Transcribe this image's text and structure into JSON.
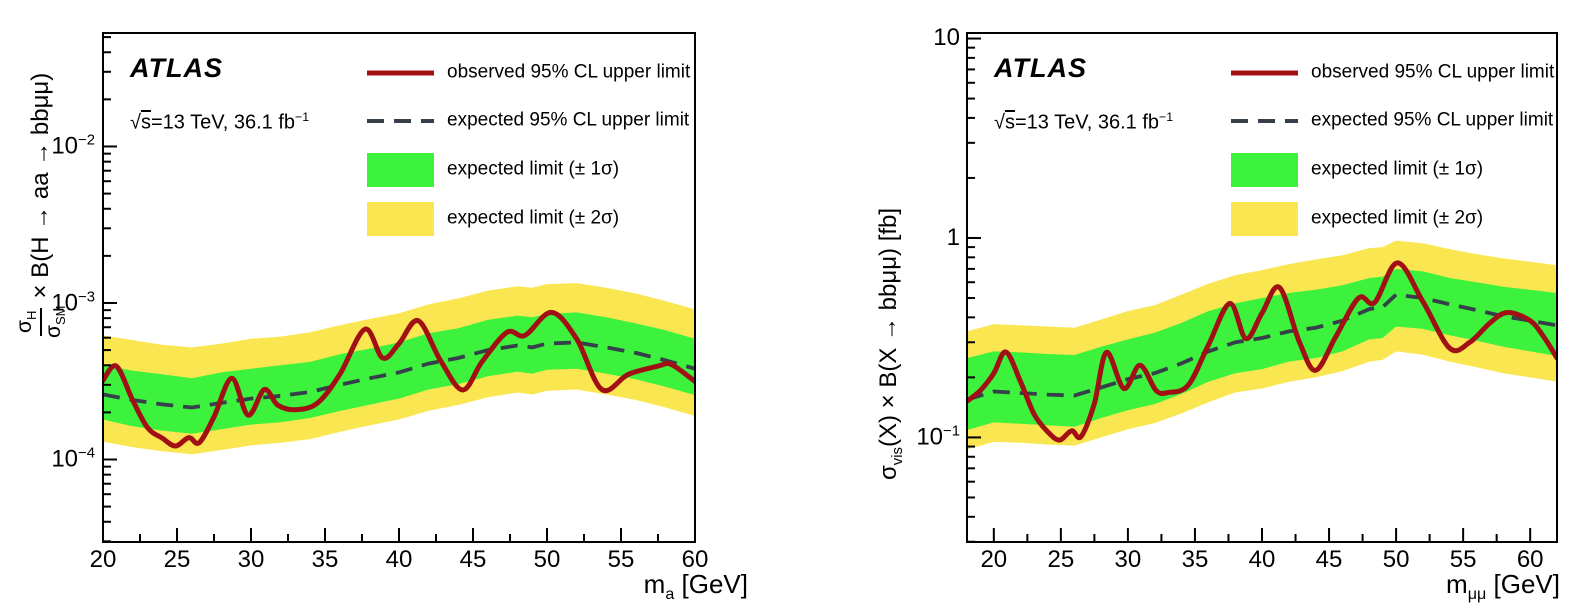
{
  "figure": {
    "atlas_label": "ATLAS",
    "lumi_label": "√s=13 TeV, 36.1 fb-1",
    "lumi_label_html": "√<span class=\"ol\">s</span>=13 TeV, 36.1 fb<sup>−1</sup>",
    "colors": {
      "observed": "#a01015",
      "expected": "#36404a",
      "band_1sigma": "#3df23d",
      "band_2sigma": "#fae650",
      "frame": "#000000",
      "text": "#000000",
      "background": "#ffffff"
    },
    "legend": {
      "position": "top-right",
      "items": [
        {
          "label": "observed 95% CL upper limit",
          "marker": "solid-line",
          "color": "#a01015"
        },
        {
          "label": "expected 95% CL upper limit",
          "marker": "dashed-line",
          "color": "#36404a"
        },
        {
          "label": "expected limit (± 1σ)",
          "marker": "filled-box",
          "color": "#3df23d"
        },
        {
          "label": "expected limit (± 2σ)",
          "marker": "filled-box",
          "color": "#fae650"
        }
      ]
    }
  },
  "chart_data": [
    {
      "type": "line",
      "title": "",
      "x_scale": "linear",
      "y_scale": "log",
      "grid": false,
      "xlabel": "m_a [GeV]",
      "xlabel_html": "m<sub>a</sub> [GeV]",
      "ylabel": "σ_H/σ_SM × B(H → aa → bbμμ)",
      "ylabel_parts": {
        "numerator_html": "σ<sub>H</sub>",
        "denominator_html": "σ<sub>SM</sub>",
        "suffix_html": "× B(H → aa → bbμμ)"
      },
      "x_range": [
        20,
        60
      ],
      "y_range": [
        2.97e-05,
        0.0531
      ],
      "x_ticks_major": [
        20,
        25,
        30,
        35,
        40,
        45,
        50,
        55,
        60
      ],
      "x_minor_step": 2.5,
      "y_ticks": [
        {
          "value": 0.01,
          "html": "10<sup>−2</sup>"
        },
        {
          "value": 0.001,
          "html": "10<sup>−3</sup>"
        },
        {
          "value": 0.0001,
          "html": "10<sup>−4</sup>"
        }
      ],
      "series": {
        "observed": {
          "name": "observed 95% CL upper limit",
          "points": [
            [
              20,
              0.00032
            ],
            [
              20.9,
              0.000395
            ],
            [
              22,
              0.00024
            ],
            [
              23,
              0.00016
            ],
            [
              24,
              0.000137
            ],
            [
              24.9,
              0.000122
            ],
            [
              25.8,
              0.000138
            ],
            [
              26.5,
              0.000128
            ],
            [
              27.5,
              0.000187
            ],
            [
              28.7,
              0.00033
            ],
            [
              29.8,
              0.000192
            ],
            [
              30.9,
              0.00028
            ],
            [
              31.8,
              0.000223
            ],
            [
              33,
              0.000208
            ],
            [
              34.5,
              0.00023
            ],
            [
              36,
              0.00035
            ],
            [
              37.7,
              0.00068
            ],
            [
              38.9,
              0.000445
            ],
            [
              40,
              0.00055
            ],
            [
              41.3,
              0.00077
            ],
            [
              42.8,
              0.00043
            ],
            [
              44.3,
              0.000278
            ],
            [
              45.6,
              0.00042
            ],
            [
              47.3,
              0.00065
            ],
            [
              48.5,
              0.00062
            ],
            [
              50.3,
              0.00087
            ],
            [
              52,
              0.00059
            ],
            [
              53.7,
              0.00028
            ],
            [
              55.5,
              0.00035
            ],
            [
              57.5,
              0.000395
            ],
            [
              58.4,
              0.000405
            ],
            [
              60,
              0.000315
            ]
          ]
        },
        "expected": {
          "name": "expected 95% CL upper limit",
          "x": [
            20,
            22,
            24,
            26,
            28,
            30,
            32,
            34,
            36,
            38,
            40,
            42,
            44,
            46,
            48,
            49,
            50,
            52,
            54,
            56,
            58,
            60
          ],
          "y": [
            0.00026,
            0.00024,
            0.000225,
            0.000215,
            0.00023,
            0.000245,
            0.000255,
            0.00027,
            0.0003,
            0.00033,
            0.00036,
            0.00041,
            0.000445,
            0.0005,
            0.000535,
            0.00052,
            0.00055,
            0.00056,
            0.00052,
            0.00048,
            0.00043,
            0.00038
          ]
        },
        "band_1sigma": {
          "name": "expected limit (± 1σ)",
          "x": [
            20,
            22,
            24,
            26,
            28,
            30,
            32,
            34,
            36,
            38,
            40,
            42,
            44,
            46,
            48,
            49,
            50,
            52,
            54,
            56,
            58,
            60
          ],
          "up": [
            0.0004,
            0.00037,
            0.00035,
            0.00033,
            0.00036,
            0.00038,
            0.0004,
            0.00042,
            0.00047,
            0.00051,
            0.00056,
            0.00064,
            0.00069,
            0.00078,
            0.00083,
            0.00081,
            0.00085,
            0.00087,
            0.00081,
            0.00074,
            0.00067,
            0.00059
          ],
          "down": [
            0.00018,
            0.000163,
            0.000153,
            0.000146,
            0.000156,
            0.000167,
            0.000173,
            0.000184,
            0.000204,
            0.000224,
            0.000245,
            0.00028,
            0.000303,
            0.00034,
            0.000364,
            0.000354,
            0.000374,
            0.00038,
            0.000354,
            0.000326,
            0.000292,
            0.000258
          ]
        },
        "band_2sigma": {
          "name": "expected limit (± 2σ)",
          "x": [
            20,
            22,
            24,
            26,
            28,
            30,
            32,
            34,
            36,
            38,
            40,
            42,
            44,
            46,
            48,
            49,
            50,
            52,
            54,
            56,
            58,
            60
          ],
          "up": [
            0.00062,
            0.00058,
            0.00054,
            0.00052,
            0.00055,
            0.00059,
            0.00061,
            0.00065,
            0.00072,
            0.00079,
            0.00086,
            0.00098,
            0.00107,
            0.0012,
            0.00128,
            0.00125,
            0.00132,
            0.00134,
            0.00125,
            0.00115,
            0.00103,
            0.00091
          ],
          "down": [
            0.00013,
            0.00012,
            0.000113,
            0.000108,
            0.000115,
            0.000123,
            0.000128,
            0.000135,
            0.00015,
            0.000165,
            0.00018,
            0.000205,
            0.000223,
            0.00025,
            0.000268,
            0.00026,
            0.000275,
            0.00028,
            0.00026,
            0.00024,
            0.000215,
            0.00019
          ]
        }
      }
    },
    {
      "type": "line",
      "title": "",
      "x_scale": "linear",
      "y_scale": "log",
      "grid": false,
      "xlabel": "m_μμ [GeV]",
      "xlabel_html": "m<sub>μμ</sub> [GeV]",
      "ylabel": "σ_vis(X) × B(X → bbμμ) [fb]",
      "ylabel_html": "σ<sub>vis</sub>(X) × B(X → bbμμ) [fb]",
      "x_range": [
        18,
        62
      ],
      "y_range": [
        0.0299,
        10.66
      ],
      "x_ticks_major": [
        20,
        25,
        30,
        35,
        40,
        45,
        50,
        55,
        60
      ],
      "x_minor_step": 2.5,
      "y_ticks": [
        {
          "value": 10,
          "html": "10"
        },
        {
          "value": 1,
          "html": "1"
        },
        {
          "value": 0.1,
          "html": "10<sup>−1</sup>"
        }
      ],
      "series": {
        "observed": {
          "name": "observed 95% CL upper limit",
          "points": [
            [
              18,
              0.152
            ],
            [
              19,
              0.172
            ],
            [
              20,
              0.21
            ],
            [
              20.9,
              0.268
            ],
            [
              22,
              0.19
            ],
            [
              23,
              0.131
            ],
            [
              24,
              0.107
            ],
            [
              24.9,
              0.097
            ],
            [
              25.8,
              0.108
            ],
            [
              26.5,
              0.101
            ],
            [
              27.5,
              0.148
            ],
            [
              28.4,
              0.267
            ],
            [
              29.7,
              0.176
            ],
            [
              30.9,
              0.23
            ],
            [
              32.1,
              0.172
            ],
            [
              33,
              0.168
            ],
            [
              34.5,
              0.183
            ],
            [
              36,
              0.29
            ],
            [
              37.6,
              0.47
            ],
            [
              38.8,
              0.313
            ],
            [
              40,
              0.42
            ],
            [
              41.3,
              0.565
            ],
            [
              42.8,
              0.3
            ],
            [
              44,
              0.217
            ],
            [
              45.5,
              0.32
            ],
            [
              47.2,
              0.5
            ],
            [
              48.4,
              0.475
            ],
            [
              50.1,
              0.75
            ],
            [
              52,
              0.48
            ],
            [
              54,
              0.28
            ],
            [
              55.5,
              0.3
            ],
            [
              57,
              0.375
            ],
            [
              58.3,
              0.423
            ],
            [
              60,
              0.385
            ],
            [
              61,
              0.32
            ],
            [
              62,
              0.25
            ]
          ]
        },
        "expected": {
          "name": "expected 95% CL upper limit",
          "x": [
            18,
            20,
            22,
            24,
            26,
            28,
            30,
            32,
            34,
            36,
            38,
            40,
            42,
            44,
            46,
            48,
            49,
            50,
            52,
            54,
            56,
            58,
            60,
            62
          ],
          "y": [
            0.155,
            0.17,
            0.167,
            0.164,
            0.162,
            0.178,
            0.196,
            0.21,
            0.235,
            0.27,
            0.3,
            0.315,
            0.34,
            0.355,
            0.385,
            0.44,
            0.45,
            0.52,
            0.5,
            0.465,
            0.435,
            0.405,
            0.385,
            0.365
          ]
        },
        "band_1sigma": {
          "name": "expected limit (± 1σ)",
          "x": [
            18,
            20,
            22,
            24,
            26,
            28,
            30,
            32,
            34,
            36,
            38,
            40,
            42,
            44,
            46,
            48,
            49,
            50,
            52,
            54,
            56,
            58,
            60,
            62
          ],
          "up": [
            0.25,
            0.27,
            0.267,
            0.262,
            0.259,
            0.285,
            0.31,
            0.335,
            0.375,
            0.43,
            0.47,
            0.5,
            0.53,
            0.55,
            0.58,
            0.63,
            0.64,
            0.7,
            0.68,
            0.63,
            0.6,
            0.57,
            0.55,
            0.53
          ],
          "down": [
            0.109,
            0.119,
            0.117,
            0.115,
            0.113,
            0.125,
            0.137,
            0.147,
            0.165,
            0.19,
            0.21,
            0.22,
            0.24,
            0.25,
            0.27,
            0.31,
            0.315,
            0.36,
            0.35,
            0.325,
            0.305,
            0.285,
            0.27,
            0.256
          ]
        },
        "band_2sigma": {
          "name": "expected limit (± 2σ)",
          "x": [
            18,
            20,
            22,
            24,
            26,
            28,
            30,
            32,
            34,
            36,
            38,
            40,
            42,
            44,
            46,
            48,
            49,
            50,
            52,
            54,
            56,
            58,
            60,
            62
          ],
          "up": [
            0.34,
            0.37,
            0.365,
            0.36,
            0.355,
            0.39,
            0.43,
            0.46,
            0.52,
            0.59,
            0.65,
            0.69,
            0.74,
            0.78,
            0.82,
            0.89,
            0.9,
            0.97,
            0.94,
            0.88,
            0.83,
            0.79,
            0.76,
            0.73
          ],
          "down": [
            0.087,
            0.095,
            0.094,
            0.092,
            0.091,
            0.1,
            0.11,
            0.118,
            0.132,
            0.15,
            0.168,
            0.176,
            0.19,
            0.2,
            0.215,
            0.24,
            0.245,
            0.27,
            0.26,
            0.24,
            0.225,
            0.21,
            0.2,
            0.19
          ]
        }
      }
    }
  ]
}
